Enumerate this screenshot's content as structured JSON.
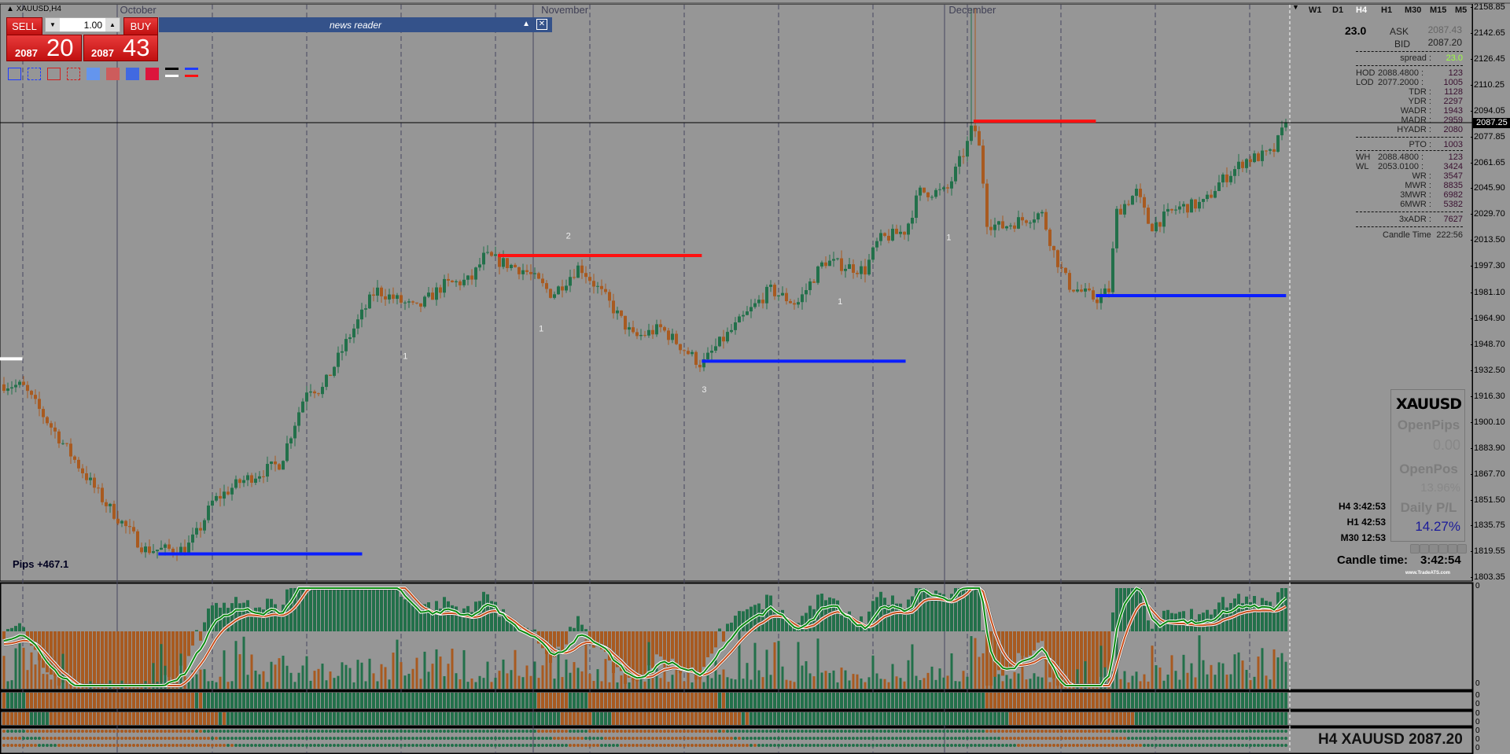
{
  "window": {
    "symbol_title": "XAUUSD,H4"
  },
  "one_click": {
    "sell_label": "SELL",
    "buy_label": "BUY",
    "lot_value": "1.00",
    "sell_price_big": "2087",
    "sell_price_pips": "20",
    "buy_price_big": "2087",
    "buy_price_pips": "43"
  },
  "drawing_tools": [
    {
      "name": "blue-rectangle-tool",
      "color": "#1e3cff",
      "style": "solid-outline"
    },
    {
      "name": "blue-dashed-rectangle-tool",
      "color": "#1e3cff",
      "style": "dashed-outline"
    },
    {
      "name": "red-rectangle-tool",
      "color": "#d02020",
      "style": "solid-outline"
    },
    {
      "name": "red-dashed-rectangle-tool",
      "color": "#d02020",
      "style": "dashed-outline"
    },
    {
      "name": "lightblue-fill-tool",
      "color": "#6495ed",
      "style": "fill"
    },
    {
      "name": "indianred-fill-tool",
      "color": "#cd5c5c",
      "style": "fill"
    },
    {
      "name": "royalblue-fill-tool",
      "color": "#4169e1",
      "style": "fill"
    },
    {
      "name": "crimson-fill-tool",
      "color": "#dc143c",
      "style": "fill"
    },
    {
      "name": "black-white-line-tool",
      "color": "#000000",
      "style": "lines"
    },
    {
      "name": "blue-red-line-tool",
      "color": "#1e3cff",
      "style": "lines"
    }
  ],
  "news_reader": {
    "title": "news reader"
  },
  "months": [
    {
      "label": "October",
      "date": "2023-10-01"
    },
    {
      "label": "November",
      "date": "2023-11-01"
    },
    {
      "label": "December",
      "date": "2023-12-01"
    }
  ],
  "timeframes": [
    {
      "label": "W1",
      "active": false
    },
    {
      "label": "D1",
      "active": false
    },
    {
      "label": "H4",
      "active": true
    },
    {
      "label": "H1",
      "active": false
    },
    {
      "label": "M30",
      "active": false
    },
    {
      "label": "M15",
      "active": false
    },
    {
      "label": "M5",
      "active": false
    }
  ],
  "info_panel": {
    "spread_big": "23.0",
    "ask_label": "ASK",
    "ask_value": "2087.43",
    "bid_label": "BID",
    "bid_value": "2087.20",
    "spread_label": "spread :",
    "spread_value": "23.0",
    "rows": [
      {
        "label": "HOD",
        "price": "2088.4800 :",
        "value": "123"
      },
      {
        "label": "LOD",
        "price": "2077.2000 :",
        "value": "1005"
      },
      {
        "label": "TDR :",
        "price": "",
        "value": "1128"
      },
      {
        "label": "YDR :",
        "price": "",
        "value": "2297"
      },
      {
        "label": "WADR :",
        "price": "",
        "value": "1943"
      },
      {
        "label": "MADR :",
        "price": "",
        "value": "2959"
      },
      {
        "label": "HYADR :",
        "price": "",
        "value": "2080"
      },
      {
        "label": "PTO :",
        "price": "",
        "value": "1003"
      },
      {
        "label": "WH",
        "price": "2088.4800 :",
        "value": "123"
      },
      {
        "label": "WL",
        "price": "2053.0100 :",
        "value": "3424"
      },
      {
        "label": "WR :",
        "price": "",
        "value": "3547"
      },
      {
        "label": "MWR :",
        "price": "",
        "value": "8835"
      },
      {
        "label": "3MWR :",
        "price": "",
        "value": "6982"
      },
      {
        "label": "6MWR :",
        "price": "",
        "value": "5382"
      },
      {
        "label": "3xADR :",
        "price": "",
        "value": "7627"
      }
    ],
    "candle_time_label": "Candle Time",
    "candle_time_value": "222:56"
  },
  "stats_box": {
    "symbol": "XAUUSD",
    "open_pips_label": "OpenPips",
    "open_pips_value": "0.00",
    "open_pos_label": "OpenPos",
    "open_pos_value": "13.96%",
    "daily_pl_label": "Daily P/L",
    "daily_pl_value": "14.27%",
    "candle_time_label": "Candle time:",
    "candle_time_value": "3:42:54",
    "website": "www.TradeATS.com"
  },
  "timers": [
    {
      "label": "H4 3:42:53"
    },
    {
      "label": "H1 42:53"
    },
    {
      "label": "M30 12:53"
    }
  ],
  "pips_label": "Pips +467.1",
  "footer_label": "H4 XAUUSD 2087.20",
  "sub_axis_labels": [
    "0",
    "0",
    "0",
    "0",
    "0",
    "0",
    "0",
    "0",
    "0"
  ],
  "colors": {
    "background": "#969696",
    "bull": "#22704a",
    "bear": "#a85a20",
    "support": "#0a1eff",
    "resistance": "#ff1010"
  },
  "chart_data": {
    "type": "candlestick",
    "symbol": "XAUUSD",
    "timeframe": "H4",
    "ylim": [
      1803.35,
      2158.85
    ],
    "current_price": "2087.25",
    "y_ticks": [
      "2158.85",
      "2142.65",
      "2126.45",
      "2110.25",
      "2094.05",
      "2077.85",
      "2061.65",
      "2045.90",
      "2029.70",
      "2013.50",
      "1997.30",
      "1981.10",
      "1964.90",
      "1948.70",
      "1932.50",
      "1916.30",
      "1900.10",
      "1883.90",
      "1867.70",
      "1851.50",
      "1835.75",
      "1819.55",
      "1803.35"
    ],
    "price_path": [
      [
        "2023-09-22",
        1924.5
      ],
      [
        "2023-09-24",
        1923
      ],
      [
        "2023-09-28",
        1875
      ],
      [
        "2023-09-30",
        1851
      ],
      [
        "2023-10-03",
        1821
      ],
      [
        "2023-10-06",
        1821
      ],
      [
        "2023-10-07",
        1833
      ],
      [
        "2023-10-08",
        1851
      ],
      [
        "2023-10-10",
        1863
      ],
      [
        "2023-10-13",
        1875
      ],
      [
        "2023-10-15",
        1923
      ],
      [
        "2023-10-16",
        1920
      ],
      [
        "2023-10-18",
        1953
      ],
      [
        "2023-10-20",
        1983
      ],
      [
        "2023-10-23",
        1971
      ],
      [
        "2023-10-25",
        1986
      ],
      [
        "2023-10-27",
        1989
      ],
      [
        "2023-10-28",
        2004
      ],
      [
        "2023-10-31",
        1995
      ],
      [
        "2023-11-02",
        1980
      ],
      [
        "2023-11-04",
        1998
      ],
      [
        "2023-11-06",
        1977
      ],
      [
        "2023-11-08",
        1953
      ],
      [
        "2023-11-10",
        1959
      ],
      [
        "2023-11-13",
        1936
      ],
      [
        "2023-11-14",
        1947
      ],
      [
        "2023-11-16",
        1965
      ],
      [
        "2023-11-18",
        1983
      ],
      [
        "2023-11-20",
        1974
      ],
      [
        "2023-11-22",
        2001
      ],
      [
        "2023-11-25",
        1995
      ],
      [
        "2023-11-26",
        2014
      ],
      [
        "2023-11-28",
        2020
      ],
      [
        "2023-11-29",
        2044
      ],
      [
        "2023-12-01",
        2044
      ],
      [
        "2023-12-02T12:00",
        2073
      ],
      [
        "2023-12-03",
        2087
      ],
      [
        "2023-12-03T12:00",
        2068
      ],
      [
        "2023-12-04",
        2025
      ],
      [
        "2023-12-05",
        2022
      ],
      [
        "2023-12-08",
        2031
      ],
      [
        "2023-12-09",
        2004
      ],
      [
        "2023-12-10",
        1986
      ],
      [
        "2023-12-12",
        1977
      ],
      [
        "2023-12-13",
        1983
      ],
      [
        "2023-12-13T12:00",
        2031
      ],
      [
        "2023-12-15",
        2044
      ],
      [
        "2023-12-16",
        2022
      ],
      [
        "2023-12-18",
        2034
      ],
      [
        "2023-12-20",
        2037
      ],
      [
        "2023-12-21",
        2049
      ],
      [
        "2023-12-23",
        2064
      ],
      [
        "2023-12-25",
        2068
      ],
      [
        "2023-12-26",
        2087.2
      ]
    ],
    "spike_high": {
      "date": "2023-12-03",
      "price": 2158.85
    },
    "levels": [
      {
        "type": "white",
        "price": 1940,
        "from": "2023-09-22",
        "to": "2023-09-24"
      },
      {
        "type": "support",
        "price": 1818.3,
        "from": "2023-10-04",
        "to": "2023-10-19"
      },
      {
        "type": "resistance",
        "price": 2004.4,
        "from": "2023-10-29",
        "to": "2023-11-13"
      },
      {
        "type": "support",
        "price": 1938.5,
        "from": "2023-11-13",
        "to": "2023-11-28"
      },
      {
        "type": "resistance",
        "price": 2088.2,
        "from": "2023-12-03",
        "to": "2023-12-12"
      },
      {
        "type": "support",
        "price": 1979.4,
        "from": "2023-12-12",
        "to": "2023-12-26"
      }
    ],
    "annotations": [
      {
        "text": "1",
        "date": "2023-10-22",
        "price": 1940
      },
      {
        "text": "2",
        "date": "2023-11-03",
        "price": 2015
      },
      {
        "text": "1",
        "date": "2023-11-01",
        "price": 1957
      },
      {
        "text": "3",
        "date": "2023-11-13",
        "price": 1919
      },
      {
        "text": "1",
        "date": "2023-11-23",
        "price": 1974
      },
      {
        "text": "1",
        "date": "2023-12-01",
        "price": 2014
      }
    ]
  }
}
